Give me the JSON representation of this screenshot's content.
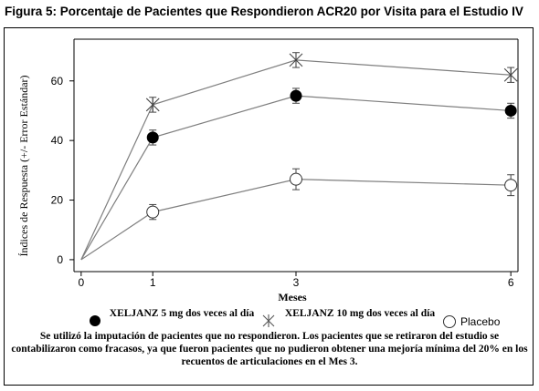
{
  "title": "Figura 5: Porcentaje de Pacientes que Respondieron ACR20 por Visita para el Estudio IV",
  "chart_data": {
    "type": "line",
    "xlabel": "Meses",
    "ylabel": "Índices de Respuesta (+/- Error Estándar)",
    "x": [
      0,
      1,
      3,
      6
    ],
    "x_ticks": [
      "0",
      "1",
      "3",
      "6"
    ],
    "y_ticks": [
      "0",
      "20",
      "40",
      "60"
    ],
    "xlim": [
      -0.1,
      6.1
    ],
    "ylim": [
      -4,
      74
    ],
    "grid": false,
    "legend_position": "bottom",
    "series": [
      {
        "name": "XELJANZ 5 mg dos veces al día",
        "marker": "filled-circle",
        "values": [
          0,
          41,
          55,
          50
        ],
        "error": [
          0,
          2.5,
          2.5,
          2.5
        ]
      },
      {
        "name": "XELJANZ 10 mg dos veces al día",
        "marker": "x-star",
        "values": [
          0,
          52,
          67,
          62
        ],
        "error": [
          0,
          2.5,
          2.5,
          2.5
        ]
      },
      {
        "name": "Placebo",
        "marker": "open-circle",
        "values": [
          0,
          16,
          27,
          25
        ],
        "error": [
          0,
          2.5,
          3.5,
          3.5
        ]
      }
    ],
    "colors": {
      "line": "#7f7f7f",
      "axis": "#000000",
      "marker_fill": "#000000"
    }
  },
  "legend": {
    "s1_label": "XELJANZ 5 mg dos veces al día",
    "s2_label": "XELJANZ 10 mg dos veces al día",
    "s3_label": "Placebo"
  },
  "footnote": "Se utilizó la imputación de pacientes que no respondieron. Los pacientes que se retiraron del estudio se contabilizaron como fracasos, ya que fueron pacientes que no pudieron obtener una mejoría mínima del 20% en los recuentos de articulaciones en el Mes 3."
}
